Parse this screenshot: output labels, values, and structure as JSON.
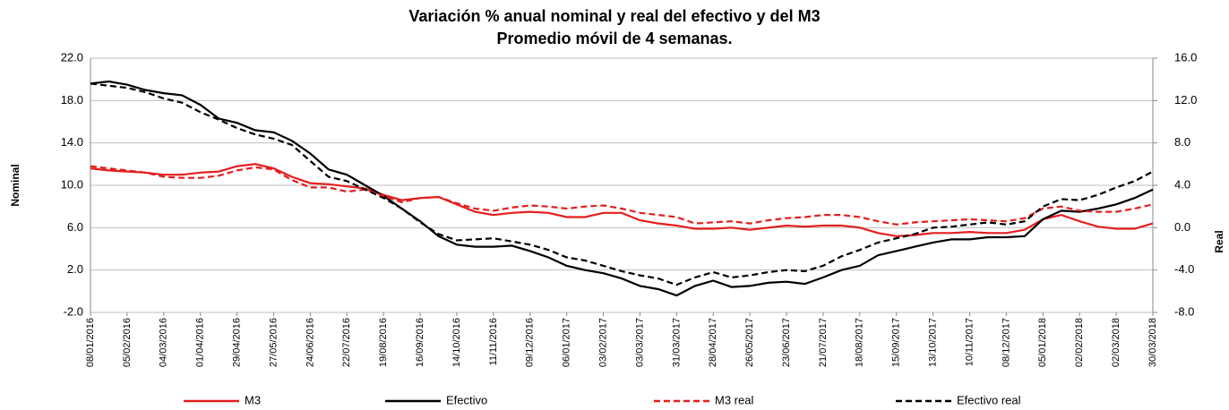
{
  "chart_data": {
    "type": "line",
    "title": "Variación % anual nominal y real del efectivo y del M3",
    "subtitle": "Promedio móvil de 4 semanas.",
    "y_label": "Nominal",
    "y2_label": "Real",
    "categories": [
      "08/01/2016",
      null,
      "05/02/2016",
      null,
      "04/03/2016",
      null,
      "01/04/2016",
      null,
      "29/04/2016",
      null,
      "27/05/2016",
      null,
      "24/06/2016",
      null,
      "22/07/2016",
      null,
      "19/08/2016",
      null,
      "16/09/2016",
      null,
      "14/10/2016",
      null,
      "11/11/2016",
      null,
      "09/12/2016",
      null,
      "06/01/2017",
      null,
      "03/02/2017",
      null,
      "03/03/2017",
      null,
      "31/03/2017",
      null,
      "28/04/2017",
      null,
      "26/05/2017",
      null,
      "23/06/2017",
      null,
      "21/07/2017",
      null,
      "18/08/2017",
      null,
      "15/09/2017",
      null,
      "13/10/2017",
      null,
      "10/11/2017",
      null,
      "08/12/2017",
      null,
      "05/01/2018",
      null,
      "02/02/2018",
      null,
      "02/03/2018",
      null,
      "30/03/2018"
    ],
    "ylim": [
      -2,
      22
    ],
    "yticks": [
      {
        "value": -2,
        "label": "-2.0"
      },
      {
        "value": 2,
        "label": "2.0"
      },
      {
        "value": 6,
        "label": "6.0"
      },
      {
        "value": 10,
        "label": "10.0"
      },
      {
        "value": 14,
        "label": "14.0"
      },
      {
        "value": 18,
        "label": "18.0"
      },
      {
        "value": 22,
        "label": "22.0"
      }
    ],
    "y2lim": [
      -8,
      16
    ],
    "y2ticks": [
      {
        "value": -8,
        "label": "-8.0"
      },
      {
        "value": -4,
        "label": "-4.0"
      },
      {
        "value": 0,
        "label": "0.0"
      },
      {
        "value": 4,
        "label": "4.0"
      },
      {
        "value": 8,
        "label": "8.0"
      },
      {
        "value": 12,
        "label": "12.0"
      },
      {
        "value": 16,
        "label": "16.0"
      }
    ],
    "grid": true,
    "series": [
      {
        "name": "M3",
        "color": "#e41e1e",
        "dash": false,
        "values": [
          11.6,
          11.4,
          11.3,
          11.2,
          11.0,
          11.0,
          11.2,
          11.3,
          11.8,
          12.0,
          11.6,
          10.8,
          10.2,
          10.1,
          9.9,
          9.7,
          9.1,
          8.6,
          8.8,
          8.9,
          8.2,
          7.5,
          7.2,
          7.4,
          7.5,
          7.4,
          7.0,
          7.0,
          7.4,
          7.4,
          6.7,
          6.4,
          6.2,
          5.9,
          5.9,
          6.0,
          5.8,
          6.0,
          6.2,
          6.1,
          6.2,
          6.2,
          6.0,
          5.5,
          5.2,
          5.3,
          5.5,
          5.5,
          5.6,
          5.5,
          5.5,
          5.8,
          6.8,
          7.2,
          6.6,
          6.1,
          5.9,
          5.9,
          6.4
        ]
      },
      {
        "name": "Efectivo",
        "color": "#000000",
        "dash": false,
        "values": [
          19.6,
          19.8,
          19.5,
          19.0,
          18.7,
          18.5,
          17.6,
          16.3,
          15.9,
          15.2,
          15.0,
          14.2,
          13.0,
          11.5,
          11.0,
          10.0,
          9.0,
          7.8,
          6.6,
          5.2,
          4.4,
          4.2,
          4.2,
          4.3,
          3.8,
          3.2,
          2.4,
          2.0,
          1.7,
          1.2,
          0.5,
          0.2,
          -0.4,
          0.5,
          1.0,
          0.4,
          0.5,
          0.8,
          0.9,
          0.7,
          1.3,
          2.0,
          2.4,
          3.4,
          3.8,
          4.2,
          4.6,
          4.9,
          4.9,
          5.1,
          5.1,
          5.2,
          6.8,
          7.6,
          7.5,
          7.8,
          8.2,
          8.8,
          9.6
        ]
      },
      {
        "name": "M3 real",
        "color": "#e41e1e",
        "dash": true,
        "axis": "y2",
        "values": [
          5.8,
          5.6,
          5.4,
          5.2,
          4.8,
          4.7,
          4.7,
          4.9,
          5.4,
          5.7,
          5.5,
          4.5,
          3.8,
          3.8,
          3.4,
          3.6,
          3.0,
          2.4,
          2.8,
          2.9,
          2.3,
          1.8,
          1.6,
          1.9,
          2.1,
          2.0,
          1.8,
          2.0,
          2.1,
          1.8,
          1.4,
          1.2,
          1.0,
          0.4,
          0.5,
          0.6,
          0.4,
          0.7,
          0.9,
          1.0,
          1.2,
          1.2,
          1.0,
          0.6,
          0.3,
          0.5,
          0.6,
          0.7,
          0.8,
          0.7,
          0.6,
          0.9,
          1.8,
          2.0,
          1.6,
          1.5,
          1.5,
          1.8,
          2.2
        ]
      },
      {
        "name": "Efectivo real",
        "color": "#000000",
        "dash": true,
        "axis": "y2",
        "values": [
          13.6,
          13.4,
          13.2,
          12.8,
          12.2,
          11.8,
          10.9,
          10.2,
          9.4,
          8.8,
          8.4,
          7.8,
          6.3,
          4.8,
          4.4,
          3.6,
          2.8,
          1.8,
          0.5,
          -0.6,
          -1.2,
          -1.1,
          -1.0,
          -1.3,
          -1.6,
          -2.1,
          -2.8,
          -3.1,
          -3.6,
          -4.1,
          -4.5,
          -4.8,
          -5.4,
          -4.7,
          -4.2,
          -4.7,
          -4.5,
          -4.2,
          -4.0,
          -4.1,
          -3.6,
          -2.7,
          -2.1,
          -1.4,
          -1.0,
          -0.6,
          0.0,
          0.1,
          0.3,
          0.5,
          0.3,
          0.6,
          2.0,
          2.7,
          2.6,
          3.1,
          3.8,
          4.4,
          5.3
        ]
      }
    ]
  }
}
